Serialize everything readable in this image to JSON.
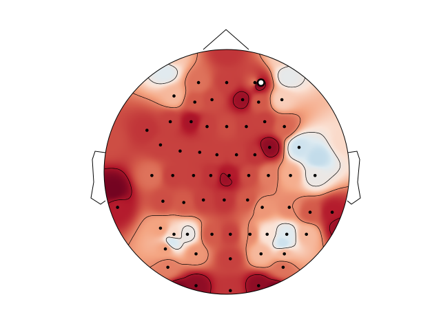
{
  "figure": {
    "background": "#ffffff",
    "outline_color": "#000000"
  },
  "chart_data": {
    "type": "heatmap",
    "subtype": "eeg-topomap",
    "title": "",
    "colormap": "RdBu_r",
    "color_stops": [
      "#3a73b3",
      "#9ec8e0",
      "#deebf2",
      "#fbe3d6",
      "#f4a582",
      "#d6604d",
      "#b2182b",
      "#67001f"
    ],
    "value_range": [
      -1,
      1
    ],
    "sensors_shown": true,
    "contour_lines": true,
    "colorbar": false,
    "head_outline": true,
    "nose": true,
    "ears": true,
    "sensors": [
      {
        "x": 0.0,
        "y": 0.73,
        "v": 0.55
      },
      {
        "x": -0.23,
        "y": 0.73,
        "v": 0.35
      },
      {
        "x": 0.23,
        "y": 0.73,
        "v": 0.3
      },
      {
        "x": -0.43,
        "y": 0.62,
        "v": 0.05
      },
      {
        "x": -0.26,
        "y": 0.57,
        "v": 0.45
      },
      {
        "x": -0.12,
        "y": 0.59,
        "v": 0.5
      },
      {
        "x": 0.13,
        "y": 0.59,
        "v": 0.8
      },
      {
        "x": 0.26,
        "y": 0.57,
        "v": 0.45
      },
      {
        "x": 0.45,
        "y": 0.59,
        "v": -0.05
      },
      {
        "x": -0.65,
        "y": 0.34,
        "v": 0.6
      },
      {
        "x": -0.46,
        "y": 0.41,
        "v": 0.55
      },
      {
        "x": -0.29,
        "y": 0.41,
        "v": 0.75
      },
      {
        "x": -0.16,
        "y": 0.37,
        "v": 0.55
      },
      {
        "x": 0.0,
        "y": 0.37,
        "v": 0.5
      },
      {
        "x": 0.16,
        "y": 0.37,
        "v": 0.55
      },
      {
        "x": 0.31,
        "y": 0.41,
        "v": 0.55
      },
      {
        "x": 0.47,
        "y": 0.37,
        "v": 0.4
      },
      {
        "x": -0.54,
        "y": 0.22,
        "v": 0.55
      },
      {
        "x": -0.38,
        "y": 0.17,
        "v": 0.55
      },
      {
        "x": -0.22,
        "y": 0.16,
        "v": 0.55
      },
      {
        "x": -0.08,
        "y": 0.14,
        "v": 0.55
      },
      {
        "x": 0.08,
        "y": 0.14,
        "v": 0.55
      },
      {
        "x": 0.23,
        "y": 0.14,
        "v": 0.6
      },
      {
        "x": 0.35,
        "y": 0.2,
        "v": 0.85
      },
      {
        "x": 0.59,
        "y": 0.2,
        "v": -0.5
      },
      {
        "x": -0.61,
        "y": -0.03,
        "v": 0.35
      },
      {
        "x": -0.44,
        "y": -0.03,
        "v": 0.55
      },
      {
        "x": -0.27,
        "y": -0.03,
        "v": 0.55
      },
      {
        "x": -0.13,
        "y": -0.03,
        "v": 0.6
      },
      {
        "x": 0.02,
        "y": -0.03,
        "v": 0.7
      },
      {
        "x": 0.18,
        "y": -0.03,
        "v": 0.5
      },
      {
        "x": 0.34,
        "y": -0.03,
        "v": 0.3
      },
      {
        "x": 0.52,
        "y": -0.03,
        "v": 0.1
      },
      {
        "x": 0.72,
        "y": -0.03,
        "v": -0.3
      },
      {
        "x": -0.89,
        "y": -0.29,
        "v": 0.7
      },
      {
        "x": -0.52,
        "y": -0.24,
        "v": 0.5
      },
      {
        "x": -0.35,
        "y": -0.25,
        "v": 0.45
      },
      {
        "x": -0.19,
        "y": -0.23,
        "v": 0.55
      },
      {
        "x": -0.02,
        "y": -0.23,
        "v": 0.6
      },
      {
        "x": 0.17,
        "y": -0.23,
        "v": 0.45
      },
      {
        "x": 0.29,
        "y": -0.29,
        "v": 0.2
      },
      {
        "x": 0.51,
        "y": -0.29,
        "v": 0.25
      },
      {
        "x": 0.68,
        "y": -0.33,
        "v": 0.45
      },
      {
        "x": 0.86,
        "y": -0.33,
        "v": 0.7
      },
      {
        "x": -0.54,
        "y": -0.46,
        "v": 0.15
      },
      {
        "x": -0.43,
        "y": -0.51,
        "v": -0.1
      },
      {
        "x": -0.32,
        "y": -0.51,
        "v": -0.3
      },
      {
        "x": -0.12,
        "y": -0.51,
        "v": 0.45
      },
      {
        "x": 0.03,
        "y": -0.51,
        "v": 0.55
      },
      {
        "x": 0.19,
        "y": -0.51,
        "v": 0.25
      },
      {
        "x": 0.33,
        "y": -0.51,
        "v": -0.15
      },
      {
        "x": 0.49,
        "y": -0.51,
        "v": -0.4
      },
      {
        "x": 0.65,
        "y": -0.51,
        "v": 0.05
      },
      {
        "x": -0.5,
        "y": -0.63,
        "v": 0.15
      },
      {
        "x": -0.25,
        "y": -0.67,
        "v": 0.2
      },
      {
        "x": 0.03,
        "y": -0.71,
        "v": 0.55
      },
      {
        "x": 0.28,
        "y": -0.67,
        "v": 0.05
      },
      {
        "x": 0.47,
        "y": -0.67,
        "v": 0.05
      },
      {
        "x": -0.48,
        "y": -0.78,
        "v": 0.3
      },
      {
        "x": 0.46,
        "y": -0.78,
        "v": 0.35
      },
      {
        "x": -0.25,
        "y": -0.93,
        "v": 0.85
      },
      {
        "x": 0.03,
        "y": -0.97,
        "v": 0.6
      },
      {
        "x": 0.26,
        "y": -0.93,
        "v": 0.85
      }
    ],
    "extra_extrema": [
      {
        "x": 0.25,
        "y": 0.72,
        "v": 0.95
      },
      {
        "x": -0.5,
        "y": 0.82,
        "v": -0.4
      },
      {
        "x": 0.5,
        "y": 0.78,
        "v": -0.35
      },
      {
        "x": 0.74,
        "y": 0.11,
        "v": -0.55
      },
      {
        "x": -0.44,
        "y": -0.57,
        "v": -0.45
      },
      {
        "x": 0.46,
        "y": -0.58,
        "v": -0.5
      },
      {
        "x": -0.92,
        "y": -0.15,
        "v": 0.95
      },
      {
        "x": 0.92,
        "y": -0.45,
        "v": 0.8
      },
      {
        "x": -0.4,
        "y": -0.98,
        "v": 0.95
      },
      {
        "x": 0.4,
        "y": -0.98,
        "v": 0.95
      },
      {
        "x": -0.45,
        "y": 0.95,
        "v": 0.0
      },
      {
        "x": 0.45,
        "y": 0.95,
        "v": -0.05
      },
      {
        "x": 0.0,
        "y": 0.98,
        "v": 0.6
      },
      {
        "x": -0.96,
        "y": 0.25,
        "v": 0.5
      },
      {
        "x": 0.96,
        "y": 0.25,
        "v": -0.1
      },
      {
        "x": 0.0,
        "y": -0.05,
        "v": 0.8
      }
    ],
    "highlighted_sensor": {
      "x": 0.28,
      "y": 0.73
    }
  }
}
